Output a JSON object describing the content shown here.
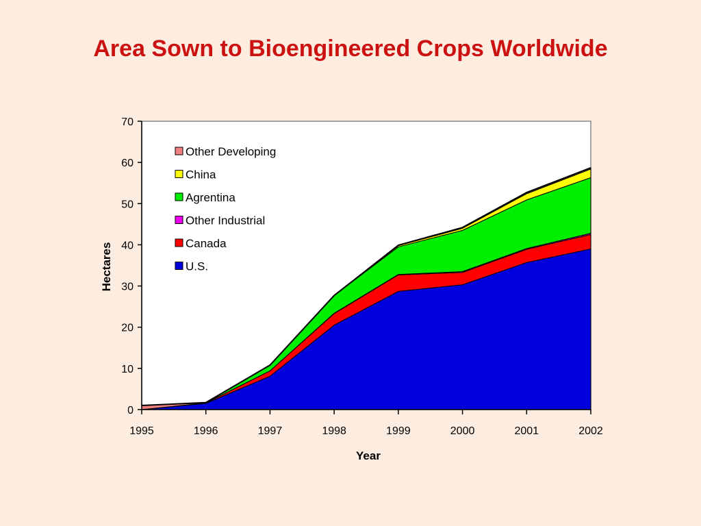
{
  "slide": {
    "title": "Area Sown to Bioengineered Crops Worldwide"
  },
  "chart_data": {
    "type": "area",
    "stacked": true,
    "categories": [
      "1995",
      "1996",
      "1997",
      "1998",
      "1999",
      "2000",
      "2001",
      "2002"
    ],
    "series": [
      {
        "name": "U.S.",
        "color": "#0000dd",
        "values": [
          0,
          1.5,
          8.1,
          20.5,
          28.7,
          30.3,
          35.7,
          39.0
        ]
      },
      {
        "name": "Canada",
        "color": "#ff0000",
        "values": [
          0,
          0.1,
          1.3,
          2.8,
          4.0,
          3.0,
          3.2,
          3.5
        ]
      },
      {
        "name": "Other Industrial",
        "color": "#ee00ee",
        "values": [
          0,
          0,
          0,
          0.1,
          0.1,
          0.2,
          0.2,
          0.3
        ]
      },
      {
        "name": "Agrentina",
        "color": "#00ee00",
        "values": [
          0,
          0,
          1.4,
          4.3,
          6.7,
          10.0,
          11.8,
          13.5
        ]
      },
      {
        "name": "China",
        "color": "#ffff00",
        "values": [
          0,
          0,
          0,
          0,
          0.3,
          0.5,
          1.5,
          2.1
        ]
      },
      {
        "name": "Other Developing",
        "color": "#f08080",
        "values": [
          1.0,
          0.1,
          0,
          0,
          0.1,
          0.2,
          0.3,
          0.3
        ]
      }
    ],
    "xlabel": "Year",
    "ylabel": "Hectares",
    "ylim": [
      0,
      70
    ],
    "yticks": [
      0,
      10,
      20,
      30,
      40,
      50,
      60,
      70
    ],
    "legend": {
      "placement": "top-left",
      "order": [
        "Other Developing",
        "China",
        "Agrentina",
        "Other Industrial",
        "Canada",
        "U.S."
      ]
    },
    "grid": false
  }
}
